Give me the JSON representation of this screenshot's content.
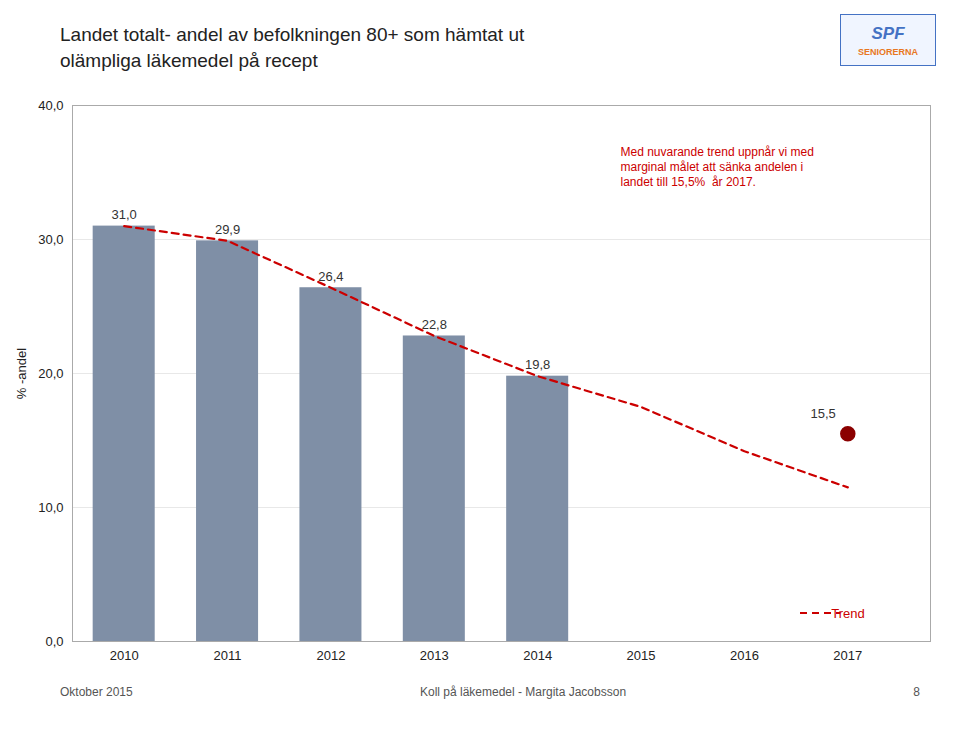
{
  "chart_data": {
    "type": "bar",
    "title": "Landet totalt- andel av befolkningen 80+ som hämtat ut\nolämpliga läkemedel på recept",
    "ylabel": "% -andel",
    "xlim": [
      2009.5,
      2017.8
    ],
    "xticks": [
      2010,
      2011,
      2012,
      2013,
      2014,
      2015,
      2016,
      2017
    ],
    "ylim": [
      0,
      40
    ],
    "yticks": [
      {
        "value": 0.0,
        "label": "0,0"
      },
      {
        "value": 10.0,
        "label": "10,0"
      },
      {
        "value": 20.0,
        "label": "20,0"
      },
      {
        "value": 30.0,
        "label": "30,0"
      },
      {
        "value": 40.0,
        "label": "40,0"
      }
    ],
    "grid": true,
    "data_labels": true,
    "series": [
      {
        "type": "bar",
        "color": "#7f8fa6",
        "x": [
          2010,
          2011,
          2012,
          2013,
          2014
        ],
        "values": [
          31.0,
          29.9,
          26.4,
          22.8,
          19.8
        ],
        "value_labels": [
          "31,0",
          "29,9",
          "26,4",
          "22,8",
          "19,8"
        ]
      },
      {
        "name": "Trend",
        "type": "line",
        "line_style": "dashed",
        "color": "#cc0000",
        "x": [
          2010,
          2011,
          2012,
          2013,
          2014,
          2015,
          2016,
          2017
        ],
        "values": [
          31.0,
          29.9,
          26.4,
          22.8,
          19.8,
          17.5,
          14.2,
          11.5
        ]
      },
      {
        "type": "scatter",
        "marker": "circle",
        "color": "#8b0000",
        "x": [
          2017
        ],
        "values": [
          15.5
        ],
        "value_labels": [
          "15,5"
        ]
      }
    ],
    "annotations": [
      "Med nuvarande trend uppnår vi med\nmarginal målet att sänka andelen i\nlandet till 15,5%  år 2017."
    ],
    "footer": [
      "Oktober 2015",
      "Koll på läkemedel - Margita Jacobsson",
      "8"
    ],
    "logo": {
      "texts": [
        "SPF",
        "SENIORERNA"
      ],
      "colors": [
        "#4472c4",
        "#e87722"
      ]
    }
  }
}
